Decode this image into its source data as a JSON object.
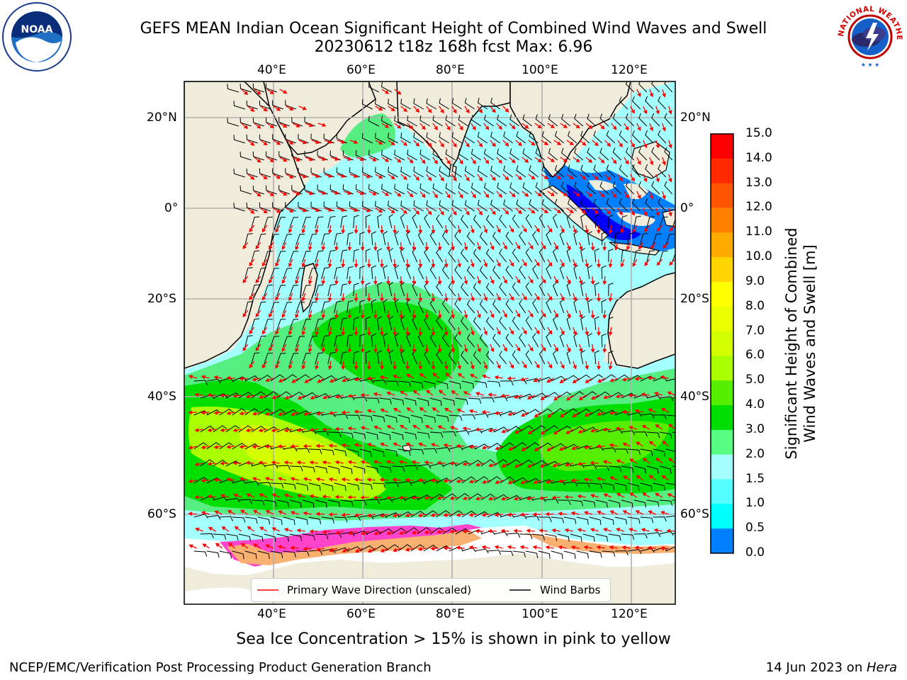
{
  "header": {
    "title_line1": "GEFS MEAN Indian Ocean Significant Height of Combined Wind Waves and Swell",
    "title_line2": "20230612 t18z 168h fcst   Max: 6.96"
  },
  "logos": {
    "left": {
      "name": "noaa-logo",
      "text": "NOAA"
    },
    "right": {
      "name": "nws-logo",
      "text": "NATIONAL WEATHER SERVICE"
    }
  },
  "map": {
    "lon_labels_top": [
      "40°E",
      "60°E",
      "80°E",
      "100°E",
      "120°E"
    ],
    "lon_labels_bottom": [
      "40°E",
      "60°E",
      "80°E",
      "100°E",
      "120°E"
    ],
    "lat_labels_left": [
      "20°N",
      "0°",
      "20°S",
      "40°S",
      "60°S"
    ],
    "lat_labels_right": [
      "20°N",
      "0°",
      "20°S",
      "40°S",
      "60°S"
    ],
    "lon_range": [
      20,
      130
    ],
    "lat_range": [
      -74,
      27
    ],
    "land_color": "#efecdc",
    "ocean_base_color": "#a4ffff",
    "legend": {
      "wave_label": "Primary Wave Direction (unscaled)",
      "wind_label": "Wind Barbs",
      "wave_color": "#ff0000",
      "wind_color": "#000000"
    }
  },
  "colorbar": {
    "ticks": [
      "15.0",
      "14.0",
      "13.0",
      "12.0",
      "11.0",
      "10.0",
      "9.0",
      "8.0",
      "7.0",
      "6.0",
      "5.0",
      "4.0",
      "3.0",
      "2.0",
      "1.5",
      "1.0",
      "0.5",
      "0.0"
    ],
    "colors": [
      "#ff0000",
      "#ff2a00",
      "#ff5500",
      "#ff8000",
      "#ffaa00",
      "#ffd400",
      "#ffff00",
      "#eaff00",
      "#d4ff00",
      "#aaff00",
      "#55ee00",
      "#00dd00",
      "#55ff80",
      "#a4ffff",
      "#55ffff",
      "#00ffff",
      "#0080ff",
      "#0000ff"
    ],
    "label_line1": "Significant Height of Combined",
    "label_line2": "Wind Waves and Swell [m]"
  },
  "notes": {
    "sea_ice": "Sea Ice Concentration > 15% is shown in pink to yellow"
  },
  "footer": {
    "left": "NCEP/EMC/Verification Post Processing Product Generation Branch",
    "right_date": "14 Jun 2023 on ",
    "right_host": "Hera"
  }
}
